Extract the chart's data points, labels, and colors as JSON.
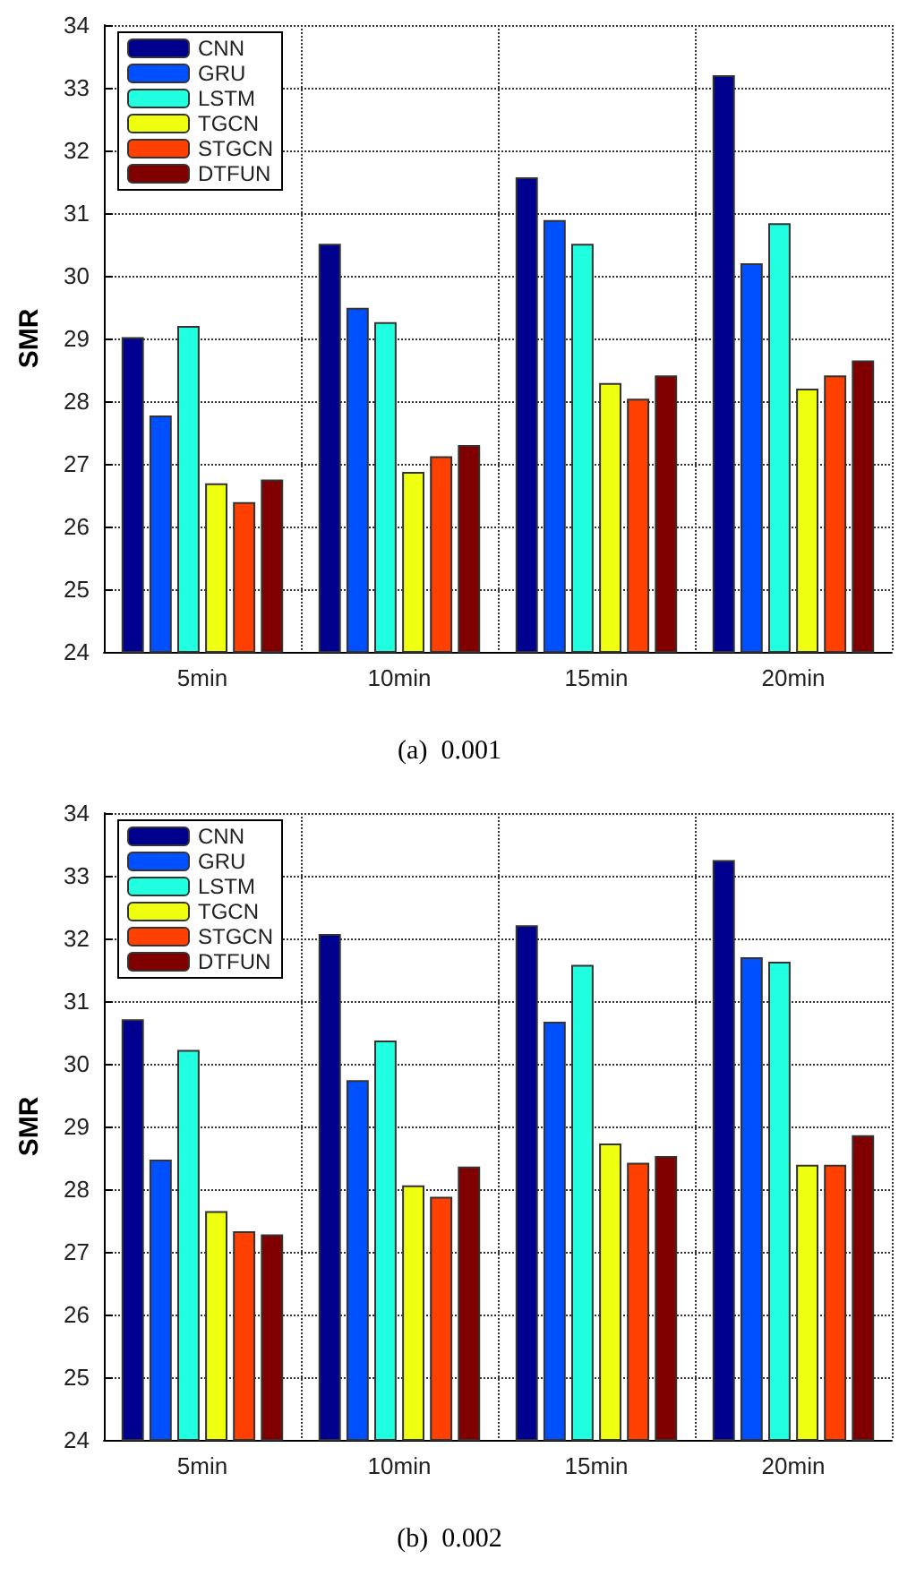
{
  "chart_data": [
    {
      "type": "bar",
      "title": "(a)  0.001",
      "ylabel": "SMR",
      "categories": [
        "5min",
        "10min",
        "15min",
        "20min"
      ],
      "ylim": [
        24,
        34
      ],
      "yticks": [
        24,
        25,
        26,
        27,
        28,
        29,
        30,
        31,
        32,
        33,
        34
      ],
      "grid": true,
      "legend": "top left",
      "series": [
        {
          "name": "CNN",
          "color": "#00008f",
          "values": [
            29.02,
            30.51,
            31.57,
            33.2
          ]
        },
        {
          "name": "GRU",
          "color": "#0050ff",
          "values": [
            27.77,
            29.49,
            30.89,
            30.2
          ]
        },
        {
          "name": "LSTM",
          "color": "#20ffdf",
          "values": [
            29.2,
            29.26,
            30.51,
            30.84
          ]
        },
        {
          "name": "TGCN",
          "color": "#efff10",
          "values": [
            26.69,
            26.87,
            28.29,
            28.2
          ]
        },
        {
          "name": "STGCN",
          "color": "#ff4000",
          "values": [
            26.39,
            27.12,
            28.04,
            28.41
          ]
        },
        {
          "name": "DTFUN",
          "color": "#800000",
          "values": [
            26.75,
            27.3,
            28.41,
            28.65
          ]
        }
      ]
    },
    {
      "type": "bar",
      "title": "(b)  0.002",
      "ylabel": "SMR",
      "categories": [
        "5min",
        "10min",
        "15min",
        "20min"
      ],
      "ylim": [
        24,
        34
      ],
      "yticks": [
        24,
        25,
        26,
        27,
        28,
        29,
        30,
        31,
        32,
        33,
        34
      ],
      "grid": true,
      "legend": "top left",
      "series": [
        {
          "name": "CNN",
          "color": "#00008f",
          "values": [
            30.71,
            32.07,
            32.21,
            33.25
          ]
        },
        {
          "name": "GRU",
          "color": "#0050ff",
          "values": [
            28.47,
            29.74,
            30.67,
            31.7
          ]
        },
        {
          "name": "LSTM",
          "color": "#20ffdf",
          "values": [
            30.22,
            30.37,
            31.58,
            31.63
          ]
        },
        {
          "name": "TGCN",
          "color": "#efff10",
          "values": [
            27.65,
            28.06,
            28.73,
            28.39
          ]
        },
        {
          "name": "STGCN",
          "color": "#ff4000",
          "values": [
            27.33,
            27.88,
            28.42,
            28.39
          ]
        },
        {
          "name": "DTFUN",
          "color": "#800000",
          "values": [
            27.28,
            28.36,
            28.53,
            28.86
          ]
        }
      ]
    }
  ]
}
